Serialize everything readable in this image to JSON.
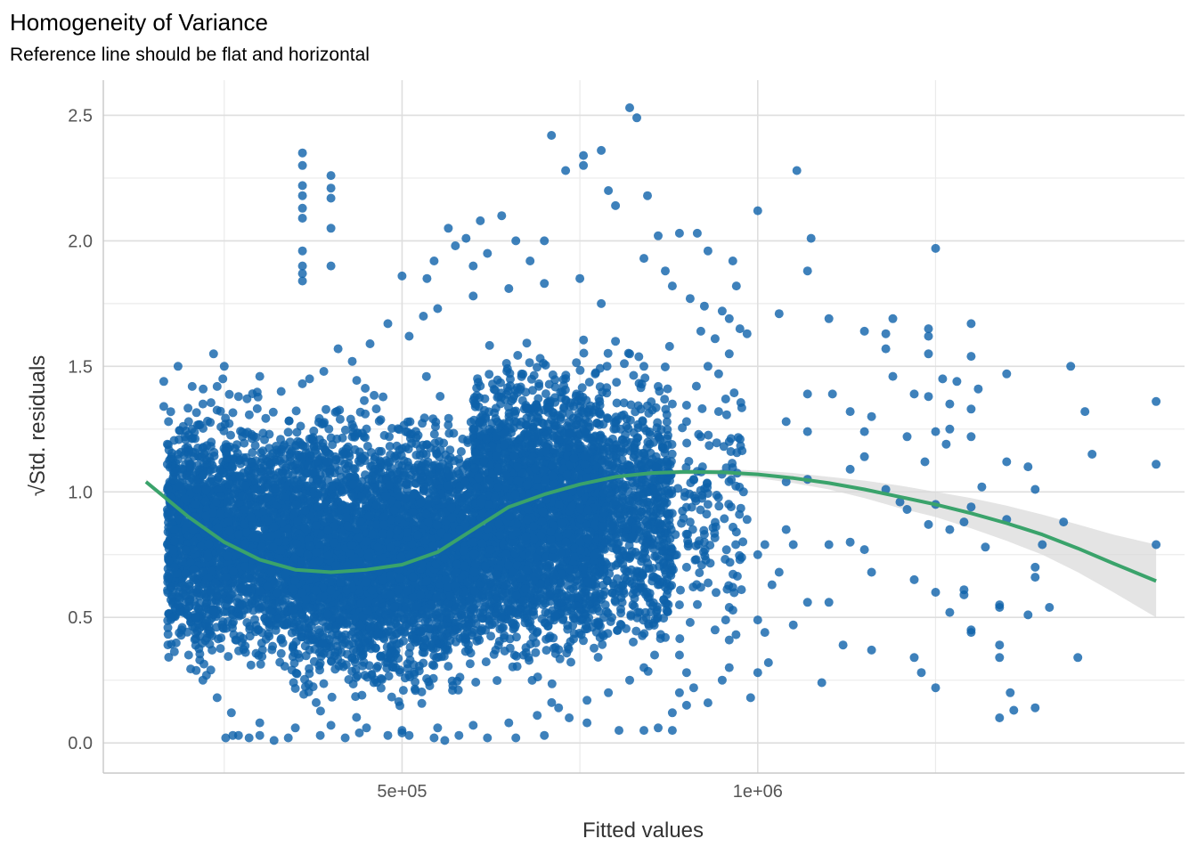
{
  "chart_data": {
    "type": "scatter",
    "title": "Homogeneity of Variance",
    "subtitle": "Reference line should be flat and horizontal",
    "xlabel": "Fitted values",
    "ylabel": "√Std. residuals",
    "xlim": [
      80000,
      1600000
    ],
    "ylim": [
      -0.12,
      2.64
    ],
    "x_ticks": [
      {
        "value": 500000,
        "label": "5e+05"
      },
      {
        "value": 1000000,
        "label": "1e+06"
      }
    ],
    "x_minor_ticks": [
      250000,
      750000,
      1250000
    ],
    "y_ticks": [
      {
        "value": 0.0,
        "label": "0.0"
      },
      {
        "value": 0.5,
        "label": "0.5"
      },
      {
        "value": 1.0,
        "label": "1.0"
      },
      {
        "value": 1.5,
        "label": "1.5"
      },
      {
        "value": 2.0,
        "label": "2.0"
      },
      {
        "value": 2.5,
        "label": "2.5"
      }
    ],
    "y_minor_ticks": [
      0.25,
      0.75,
      1.25,
      1.75,
      2.25
    ],
    "grid": true,
    "colors": {
      "points": "#0e62aa",
      "smooth_line": "#3aa36b",
      "ribbon": "#d9d9d9"
    },
    "smooth_line": {
      "x": [
        140000,
        200000,
        250000,
        300000,
        350000,
        400000,
        450000,
        500000,
        550000,
        600000,
        650000,
        700000,
        750000,
        800000,
        850000,
        900000,
        950000,
        1000000,
        1050000,
        1100000,
        1150000,
        1200000,
        1250000,
        1300000,
        1350000,
        1400000,
        1450000,
        1500000,
        1560000
      ],
      "y": [
        1.04,
        0.9,
        0.8,
        0.73,
        0.69,
        0.68,
        0.69,
        0.71,
        0.76,
        0.85,
        0.94,
        0.99,
        1.03,
        1.06,
        1.075,
        1.08,
        1.078,
        1.07,
        1.055,
        1.035,
        1.01,
        0.98,
        0.95,
        0.915,
        0.875,
        0.83,
        0.775,
        0.715,
        0.645
      ],
      "ci_upper": [
        1.05,
        0.91,
        0.81,
        0.74,
        0.7,
        0.69,
        0.7,
        0.72,
        0.77,
        0.86,
        0.95,
        1.0,
        1.04,
        1.07,
        1.085,
        1.09,
        1.09,
        1.085,
        1.075,
        1.06,
        1.045,
        1.025,
        1.0,
        0.975,
        0.945,
        0.91,
        0.87,
        0.83,
        0.79
      ],
      "ci_lower": [
        1.03,
        0.89,
        0.79,
        0.72,
        0.68,
        0.67,
        0.68,
        0.7,
        0.75,
        0.84,
        0.93,
        0.98,
        1.02,
        1.05,
        1.065,
        1.07,
        1.066,
        1.055,
        1.035,
        1.01,
        0.975,
        0.935,
        0.9,
        0.855,
        0.805,
        0.75,
        0.68,
        0.6,
        0.5
      ]
    },
    "points": [
      [
        360000,
        2.35
      ],
      [
        360000,
        2.3
      ],
      [
        360000,
        2.22
      ],
      [
        360000,
        2.18
      ],
      [
        360000,
        2.13
      ],
      [
        360000,
        2.09
      ],
      [
        360000,
        1.96
      ],
      [
        360000,
        1.9
      ],
      [
        360000,
        1.87
      ],
      [
        360000,
        1.84
      ],
      [
        400000,
        2.26
      ],
      [
        400000,
        2.21
      ],
      [
        400000,
        2.17
      ],
      [
        400000,
        2.05
      ],
      [
        400000,
        1.9
      ],
      [
        500000,
        1.86
      ],
      [
        710000,
        2.42
      ],
      [
        820000,
        2.53
      ],
      [
        830000,
        2.49
      ],
      [
        780000,
        2.36
      ],
      [
        755000,
        2.34
      ],
      [
        755000,
        2.3
      ],
      [
        790000,
        2.2
      ],
      [
        730000,
        2.28
      ],
      [
        1055000,
        2.28
      ],
      [
        1000000,
        2.12
      ],
      [
        1075000,
        2.01
      ],
      [
        1070000,
        1.88
      ],
      [
        1250000,
        1.97
      ],
      [
        1030000,
        1.71
      ],
      [
        1100000,
        1.69
      ],
      [
        1150000,
        1.64
      ],
      [
        1190000,
        1.69
      ],
      [
        1240000,
        1.65
      ],
      [
        1180000,
        1.63
      ],
      [
        1240000,
        1.62
      ],
      [
        1300000,
        1.67
      ],
      [
        1180000,
        1.57
      ],
      [
        1240000,
        1.55
      ],
      [
        1300000,
        1.54
      ],
      [
        1350000,
        1.47
      ],
      [
        1440000,
        1.5
      ],
      [
        1190000,
        1.46
      ],
      [
        1260000,
        1.45
      ],
      [
        1280000,
        1.44
      ],
      [
        1070000,
        1.39
      ],
      [
        1105000,
        1.39
      ],
      [
        1130000,
        1.32
      ],
      [
        1160000,
        1.3
      ],
      [
        1220000,
        1.39
      ],
      [
        1240000,
        1.38
      ],
      [
        1270000,
        1.35
      ],
      [
        1300000,
        1.33
      ],
      [
        1310000,
        1.41
      ],
      [
        1560000,
        1.36
      ],
      [
        1460000,
        1.32
      ],
      [
        1040000,
        1.28
      ],
      [
        1070000,
        1.24
      ],
      [
        1150000,
        1.24
      ],
      [
        1210000,
        1.22
      ],
      [
        1250000,
        1.24
      ],
      [
        1270000,
        1.25
      ],
      [
        1300000,
        1.22
      ],
      [
        1265000,
        1.19
      ],
      [
        1235000,
        1.12
      ],
      [
        1470000,
        1.15
      ],
      [
        1380000,
        1.1
      ],
      [
        1350000,
        1.12
      ],
      [
        1560000,
        1.11
      ],
      [
        1150000,
        1.14
      ],
      [
        1130000,
        1.09
      ],
      [
        1040000,
        1.04
      ],
      [
        1070000,
        1.05
      ],
      [
        1180000,
        1.01
      ],
      [
        1200000,
        0.96
      ],
      [
        1250000,
        0.95
      ],
      [
        1300000,
        0.94
      ],
      [
        1315000,
        1.02
      ],
      [
        1390000,
        1.01
      ],
      [
        1210000,
        0.93
      ],
      [
        1240000,
        0.87
      ],
      [
        1270000,
        0.85
      ],
      [
        1290000,
        0.88
      ],
      [
        1350000,
        0.89
      ],
      [
        1430000,
        0.88
      ],
      [
        1320000,
        0.78
      ],
      [
        1400000,
        0.79
      ],
      [
        1560000,
        0.79
      ],
      [
        1010000,
        0.79
      ],
      [
        1050000,
        0.79
      ],
      [
        1100000,
        0.79
      ],
      [
        1130000,
        0.8
      ],
      [
        1150000,
        0.77
      ],
      [
        1160000,
        0.68
      ],
      [
        1220000,
        0.65
      ],
      [
        1250000,
        0.6
      ],
      [
        1290000,
        0.59
      ],
      [
        1290000,
        0.61
      ],
      [
        1390000,
        0.7
      ],
      [
        1390000,
        0.66
      ],
      [
        1340000,
        0.54
      ],
      [
        1340000,
        0.55
      ],
      [
        1410000,
        0.54
      ],
      [
        1380000,
        0.51
      ],
      [
        1270000,
        0.52
      ],
      [
        1030000,
        0.68
      ],
      [
        1070000,
        0.56
      ],
      [
        1100000,
        0.56
      ],
      [
        1000000,
        0.49
      ],
      [
        1010000,
        0.44
      ],
      [
        1050000,
        0.47
      ],
      [
        1120000,
        0.39
      ],
      [
        1160000,
        0.37
      ],
      [
        1300000,
        0.44
      ],
      [
        1300000,
        0.45
      ],
      [
        1340000,
        0.39
      ],
      [
        1340000,
        0.34
      ],
      [
        1450000,
        0.34
      ],
      [
        1015000,
        0.32
      ],
      [
        1090000,
        0.24
      ],
      [
        1220000,
        0.34
      ],
      [
        1230000,
        0.28
      ],
      [
        1250000,
        0.22
      ],
      [
        1340000,
        0.1
      ],
      [
        1360000,
        0.13
      ],
      [
        1355000,
        0.2
      ],
      [
        1390000,
        0.14
      ],
      [
        990000,
        0.18
      ],
      [
        165000,
        1.44
      ],
      [
        165000,
        1.34
      ],
      [
        170000,
        1.19
      ],
      [
        170000,
        1.11
      ],
      [
        175000,
        0.62
      ],
      [
        175000,
        0.57
      ],
      [
        185000,
        1.5
      ],
      [
        200000,
        1.28
      ],
      [
        195000,
        0.59
      ],
      [
        205000,
        1.42
      ],
      [
        210000,
        0.5
      ],
      [
        225000,
        0.27
      ],
      [
        235000,
        1.55
      ],
      [
        248000,
        1.45
      ],
      [
        250000,
        1.5
      ],
      [
        252000,
        0.02
      ],
      [
        262000,
        0.03
      ],
      [
        270000,
        0.03
      ],
      [
        285000,
        0.02
      ],
      [
        300000,
        0.03
      ],
      [
        320000,
        0.01
      ],
      [
        340000,
        0.02
      ],
      [
        385000,
        0.03
      ],
      [
        410000,
        1.57
      ],
      [
        420000,
        0.02
      ],
      [
        440000,
        0.04
      ],
      [
        480000,
        0.03
      ],
      [
        500000,
        0.04
      ],
      [
        510000,
        0.03
      ],
      [
        545000,
        0.02
      ],
      [
        560000,
        0.01
      ],
      [
        580000,
        0.03
      ],
      [
        620000,
        0.02
      ],
      [
        660000,
        0.02
      ],
      [
        700000,
        0.03
      ],
      [
        735000,
        0.1
      ],
      [
        760000,
        0.08
      ],
      [
        805000,
        0.05
      ],
      [
        840000,
        0.05
      ],
      [
        860000,
        0.06
      ],
      [
        880000,
        0.05
      ],
      [
        800000,
        2.14
      ],
      [
        845000,
        2.18
      ],
      [
        860000,
        2.02
      ],
      [
        840000,
        1.93
      ],
      [
        890000,
        2.03
      ],
      [
        915000,
        2.03
      ],
      [
        930000,
        1.96
      ],
      [
        965000,
        1.92
      ],
      [
        925000,
        1.74
      ],
      [
        960000,
        1.69
      ],
      [
        975000,
        1.65
      ],
      [
        985000,
        1.63
      ],
      [
        970000,
        1.82
      ],
      [
        955000,
        1.37
      ],
      [
        945000,
        1.32
      ],
      [
        960000,
        1.2
      ],
      [
        980000,
        1.0
      ],
      [
        985000,
        0.89
      ],
      [
        970000,
        0.84
      ],
      [
        975000,
        0.73
      ],
      [
        965000,
        0.62
      ],
      [
        960000,
        0.54
      ],
      [
        960000,
        0.41
      ],
      [
        960000,
        0.3
      ],
      [
        950000,
        0.25
      ],
      [
        930000,
        0.16
      ],
      [
        900000,
        0.15
      ],
      [
        880000,
        0.12
      ],
      [
        890000,
        0.2
      ],
      [
        910000,
        0.22
      ],
      [
        955000,
        0.49
      ],
      [
        940000,
        0.45
      ],
      [
        890000,
        0.35
      ],
      [
        900000,
        0.28
      ],
      [
        930000,
        1.5
      ],
      [
        945000,
        1.47
      ],
      [
        920000,
        1.64
      ],
      [
        940000,
        1.61
      ],
      [
        960000,
        1.55
      ],
      [
        950000,
        1.72
      ],
      [
        905000,
        1.77
      ],
      [
        880000,
        1.82
      ],
      [
        870000,
        1.88
      ],
      [
        1000000,
        0.28
      ],
      [
        1020000,
        0.63
      ],
      [
        1000000,
        0.75
      ],
      [
        1040000,
        0.85
      ],
      [
        750000,
        1.85
      ],
      [
        700000,
        1.83
      ],
      [
        650000,
        1.81
      ],
      [
        600000,
        1.78
      ],
      [
        550000,
        1.73
      ],
      [
        530000,
        1.7
      ],
      [
        510000,
        1.62
      ],
      [
        480000,
        1.67
      ],
      [
        455000,
        1.59
      ],
      [
        430000,
        1.52
      ],
      [
        390000,
        1.48
      ],
      [
        370000,
        1.45
      ],
      [
        330000,
        1.4
      ],
      [
        300000,
        1.46
      ],
      [
        270000,
        1.38
      ],
      [
        240000,
        1.42
      ],
      [
        220000,
        1.35
      ],
      [
        780000,
        1.75
      ],
      [
        800000,
        1.6
      ],
      [
        820000,
        1.55
      ],
      [
        840000,
        1.5
      ],
      [
        860000,
        1.42
      ],
      [
        880000,
        1.35
      ],
      [
        900000,
        1.28
      ],
      [
        920000,
        1.22
      ],
      [
        910000,
        1.05
      ],
      [
        930000,
        0.95
      ],
      [
        905000,
        0.88
      ],
      [
        925000,
        0.8
      ],
      [
        900000,
        0.7
      ],
      [
        920000,
        0.62
      ],
      [
        890000,
        0.55
      ],
      [
        905000,
        0.48
      ],
      [
        870000,
        0.42
      ],
      [
        855000,
        0.35
      ],
      [
        840000,
        0.3
      ],
      [
        820000,
        0.25
      ],
      [
        790000,
        0.2
      ],
      [
        760000,
        0.17
      ],
      [
        720000,
        0.14
      ],
      [
        690000,
        0.11
      ],
      [
        650000,
        0.08
      ],
      [
        600000,
        0.07
      ],
      [
        550000,
        0.06
      ],
      [
        500000,
        0.05
      ],
      [
        450000,
        0.06
      ],
      [
        400000,
        0.07
      ],
      [
        350000,
        0.06
      ],
      [
        300000,
        0.08
      ],
      [
        260000,
        0.12
      ],
      [
        240000,
        0.18
      ],
      [
        220000,
        0.25
      ],
      [
        200000,
        0.35
      ],
      [
        190000,
        0.45
      ],
      [
        185000,
        0.55
      ],
      [
        180000,
        0.7
      ],
      [
        180000,
        0.85
      ],
      [
        175000,
        0.95
      ],
      [
        178000,
        1.05
      ],
      [
        185000,
        1.15
      ],
      [
        195000,
        1.22
      ],
      [
        565000,
        2.05
      ],
      [
        575000,
        1.98
      ],
      [
        590000,
        2.01
      ],
      [
        610000,
        2.08
      ],
      [
        620000,
        1.95
      ],
      [
        640000,
        2.1
      ],
      [
        660000,
        2.0
      ],
      [
        680000,
        1.92
      ],
      [
        600000,
        1.9
      ],
      [
        700000,
        2.0
      ],
      [
        545000,
        1.92
      ],
      [
        535000,
        1.85
      ]
    ],
    "dense_regions": [
      {
        "x_min": 170000,
        "x_max": 345000,
        "y_center": 0.82,
        "y_spread": 0.29,
        "count": 2200
      },
      {
        "x_min": 345000,
        "x_max": 600000,
        "y_center": 0.76,
        "y_spread": 0.33,
        "count": 3600
      },
      {
        "x_min": 600000,
        "x_max": 780000,
        "y_center": 0.92,
        "y_spread": 0.36,
        "count": 2800
      },
      {
        "x_min": 780000,
        "x_max": 880000,
        "y_center": 0.92,
        "y_spread": 0.33,
        "count": 700
      },
      {
        "x_min": 880000,
        "x_max": 980000,
        "y_center": 0.95,
        "y_spread": 0.3,
        "count": 120
      }
    ]
  }
}
